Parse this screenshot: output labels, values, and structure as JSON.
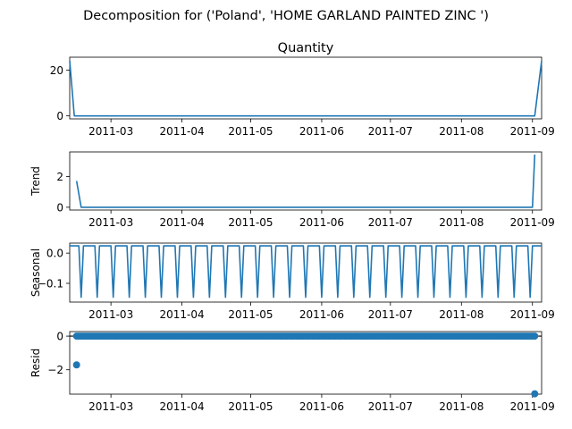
{
  "title": "Decomposition for ('Poland', 'HOME GARLAND PAINTED ZINC ')",
  "colors": {
    "line": "#1f77b4",
    "axis": "#000000",
    "background": "#ffffff"
  },
  "chart_data": [
    {
      "type": "line",
      "title": "Quantity",
      "ylabel": "",
      "x_range": [
        "2011-02-11",
        "2011-09-05"
      ],
      "ylim": [
        -1.3,
        25.6
      ],
      "yticks": [
        0,
        20
      ],
      "xticks": [
        "2011-03",
        "2011-04",
        "2011-05",
        "2011-06",
        "2011-07",
        "2011-08",
        "2011-09"
      ],
      "series": [
        {
          "x": [
            "2011-02-11",
            "2011-02-13",
            "2011-09-02",
            "2011-09-05"
          ],
          "y": [
            24,
            0,
            0,
            24
          ]
        }
      ]
    },
    {
      "type": "line",
      "title": "",
      "ylabel": "Trend",
      "x_range": [
        "2011-02-11",
        "2011-09-05"
      ],
      "ylim": [
        -0.18,
        3.6
      ],
      "yticks": [
        0,
        2
      ],
      "xticks": [
        "2011-03",
        "2011-04",
        "2011-05",
        "2011-06",
        "2011-07",
        "2011-08",
        "2011-09"
      ],
      "series": [
        {
          "x": [
            "2011-02-14",
            "2011-02-16",
            "2011-09-01",
            "2011-09-02"
          ],
          "y": [
            1.71,
            0,
            0,
            3.43
          ]
        }
      ]
    },
    {
      "type": "line",
      "title": "",
      "ylabel": "Seasonal",
      "x_range": [
        "2011-02-11",
        "2011-09-05"
      ],
      "ylim": [
        -0.162,
        0.033
      ],
      "yticks": [
        0.0,
        -0.1
      ],
      "ytick_labels": [
        "0.0",
        "−0.1"
      ],
      "xticks": [
        "2011-03",
        "2011-04",
        "2011-05",
        "2011-06",
        "2011-07",
        "2011-08",
        "2011-09"
      ],
      "pattern": {
        "start": "2011-02-11",
        "end": "2011-09-05",
        "period_days": 7,
        "values": [
          0.024,
          0.024,
          0.024,
          0.024,
          0.024,
          -0.146,
          0.024
        ]
      }
    },
    {
      "type": "scatter",
      "title": "",
      "ylabel": "Resid",
      "x_range": [
        "2011-02-11",
        "2011-09-05"
      ],
      "ylim": [
        -3.45,
        0.27
      ],
      "yticks": [
        0,
        -2
      ],
      "ytick_labels": [
        "0",
        "−2"
      ],
      "xticks": [
        "2011-03",
        "2011-04",
        "2011-05",
        "2011-06",
        "2011-07",
        "2011-08",
        "2011-09"
      ],
      "reference_line": 0,
      "zero_resid_range": [
        "2011-02-14",
        "2011-09-02"
      ],
      "outliers": [
        {
          "x": "2011-02-14",
          "y": -1.71
        },
        {
          "x": "2011-09-02",
          "y": -3.43
        }
      ]
    }
  ]
}
